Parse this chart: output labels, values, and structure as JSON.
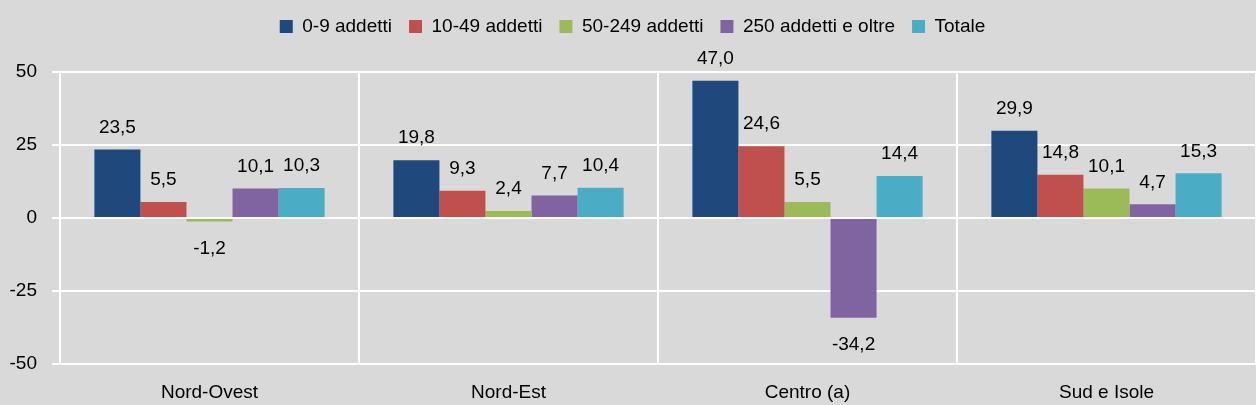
{
  "chart_data": {
    "type": "bar",
    "categories": [
      "Nord-Ovest",
      "Nord-Est",
      "Centro (a)",
      "Sud e Isole"
    ],
    "series": [
      {
        "name": "0-9 addetti",
        "color": "#1f497d",
        "values": [
          23.5,
          19.8,
          47.0,
          29.9
        ],
        "value_labels": [
          "23,5",
          "19,8",
          "47,0",
          "29,9"
        ]
      },
      {
        "name": "10-49 addetti",
        "color": "#c0504d",
        "values": [
          5.5,
          9.3,
          24.6,
          14.8
        ],
        "value_labels": [
          "5,5",
          "9,3",
          "24,6",
          "14,8"
        ]
      },
      {
        "name": "50-249 addetti",
        "color": "#9bbb59",
        "values": [
          -1.2,
          2.4,
          5.5,
          10.1
        ],
        "value_labels": [
          "-1,2",
          "2,4",
          "5,5",
          "10,1"
        ]
      },
      {
        "name": "250 addetti e oltre",
        "color": "#8064a2",
        "values": [
          10.1,
          7.7,
          -34.2,
          4.7
        ],
        "value_labels": [
          "10,1",
          "7,7",
          "-34,2",
          "4,7"
        ]
      },
      {
        "name": "Totale",
        "color": "#4bacc6",
        "values": [
          10.3,
          10.4,
          14.4,
          15.3
        ],
        "value_labels": [
          "10,3",
          "10,4",
          "14,4",
          "15,3"
        ]
      }
    ],
    "ylim": [
      -50,
      50
    ],
    "yticks": [
      -50,
      -25,
      0,
      25,
      50
    ],
    "grid": true,
    "legend": "top"
  }
}
